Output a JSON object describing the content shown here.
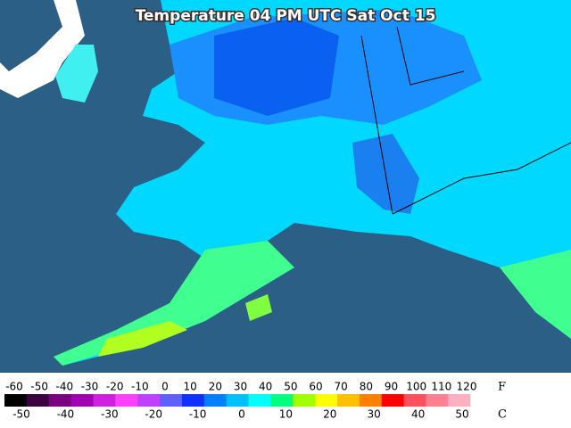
{
  "title": "Temperature 04 PM UTC Sat Oct 15",
  "legend": {
    "colors": [
      "#000000",
      "#3a0040",
      "#7a0080",
      "#a000b0",
      "#d020e0",
      "#ff40ff",
      "#c040ff",
      "#6060ff",
      "#1030ff",
      "#0080ff",
      "#00c0ff",
      "#00ffff",
      "#00ff80",
      "#a0ff00",
      "#ffff00",
      "#ffc000",
      "#ff8000",
      "#ff0000",
      "#ff5060",
      "#ff8090",
      "#ffb0c0",
      "#ffffff"
    ],
    "fahrenheit": {
      "unit": "F",
      "ticks": [
        -60,
        -50,
        -40,
        -30,
        -20,
        -10,
        0,
        10,
        20,
        30,
        40,
        50,
        60,
        70,
        80,
        90,
        100,
        110,
        120
      ]
    },
    "celsius": {
      "unit": "C",
      "ticks": [
        -50,
        -40,
        -30,
        -20,
        -10,
        0,
        10,
        20,
        30,
        40,
        50
      ]
    }
  }
}
